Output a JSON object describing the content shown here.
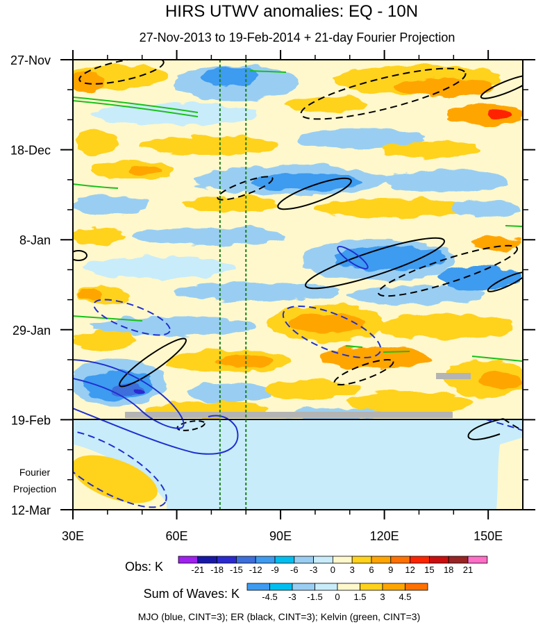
{
  "chart_data": {
    "type": "heatmap",
    "title": "HIRS UTWV anomalies: EQ - 10N",
    "subtitle": "27-Nov-2013 to 19-Feb-2014 + 21-day Fourier Projection",
    "x_axis": {
      "range": [
        30,
        160
      ],
      "ticks": [
        {
          "value": 30,
          "label": "30E"
        },
        {
          "value": 60,
          "label": "60E"
        },
        {
          "value": 90,
          "label": "90E"
        },
        {
          "value": 120,
          "label": "120E"
        },
        {
          "value": 150,
          "label": "150E"
        }
      ]
    },
    "y_axis": {
      "direction": "time increases downward",
      "range_days": [
        0,
        105
      ],
      "ticks": [
        {
          "day": 0,
          "label": "27-Nov"
        },
        {
          "day": 21,
          "label": "18-Dec"
        },
        {
          "day": 42,
          "label": "8-Jan"
        },
        {
          "day": 63,
          "label": "29-Jan"
        },
        {
          "day": 84,
          "label": "19-Feb"
        },
        {
          "day": 105,
          "label": "12-Mar"
        }
      ]
    },
    "projection_start_day": 84,
    "projection_label_line1": "Fourier",
    "projection_label_line2": "Projection",
    "vertical_reference_lines_lon": [
      72.5,
      80
    ],
    "reference_line_color": "#1a7f1a",
    "obs_legend": {
      "label": "Obs: K",
      "levels": [
        "-21",
        "-18",
        "-15",
        "-12",
        "-9",
        "-6",
        "-3",
        "0",
        "3",
        "6",
        "9",
        "12",
        "15",
        "18",
        "21"
      ],
      "colors": [
        "#a020f0",
        "#1818a8",
        "#2a2ad0",
        "#3c6edc",
        "#3e9bf0",
        "#00bff0",
        "#99cef2",
        "#c8ecfa",
        "#fff8cc",
        "#ffd21c",
        "#ffa500",
        "#ff7100",
        "#ff2400",
        "#cc0d0d",
        "#9a2323",
        "#ff6ec7"
      ]
    },
    "waves_legend": {
      "label": "Sum of Waves: K",
      "levels": [
        "-4.5",
        "-3",
        "-1.5",
        "0",
        "1.5",
        "3",
        "4.5"
      ],
      "colors": [
        "#3e9bf0",
        "#00bff0",
        "#99cef2",
        "#c8ecfa",
        "#fff8cc",
        "#ffd21c",
        "#ffa500",
        "#ff7100"
      ]
    },
    "contours": [
      {
        "name": "MJO",
        "color": "blue",
        "cint": 3
      },
      {
        "name": "ER",
        "color": "black",
        "cint": 3
      },
      {
        "name": "Kelvin",
        "color": "green",
        "cint": 3
      }
    ],
    "footer": "MJO (blue, CINT=3); ER (black, CINT=3); Kelvin (green, CINT=3)",
    "missing_data_bars": [
      {
        "lon_start": 46,
        "lon_end": 140,
        "day": 83
      },
      {
        "lon_start": 135,
        "lon_end": 145,
        "day": 71
      }
    ]
  }
}
